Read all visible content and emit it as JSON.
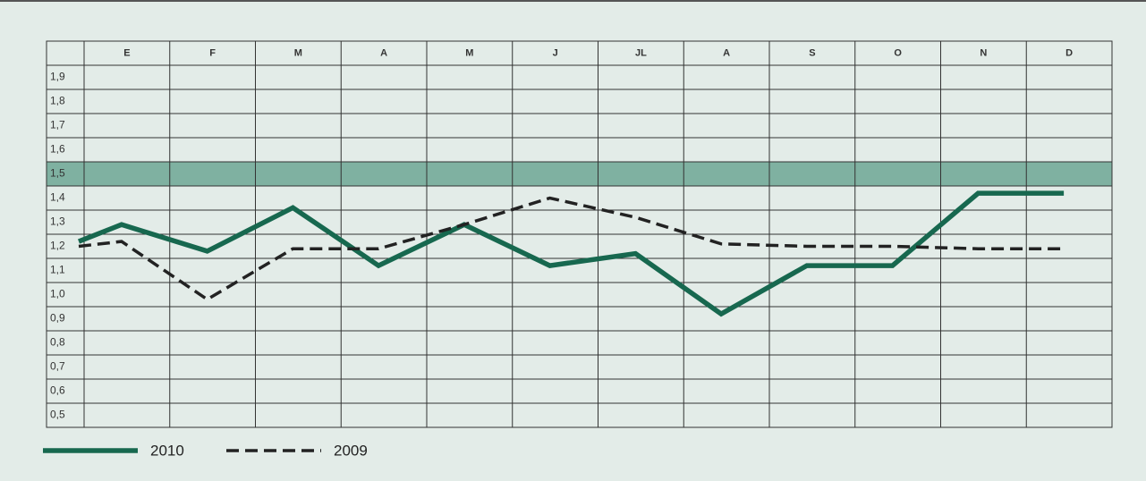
{
  "chart_data": {
    "type": "line",
    "categories": [
      null,
      "E",
      "F",
      "M",
      "A",
      "M",
      "J",
      "JL",
      "A",
      "S",
      "O",
      "N",
      "D"
    ],
    "series": [
      {
        "name": "2010",
        "color": "#17684f",
        "dash": false,
        "values": [
          1.22,
          1.29,
          1.18,
          1.36,
          1.12,
          1.29,
          1.12,
          1.17,
          0.92,
          1.12,
          1.12,
          1.42,
          1.42
        ]
      },
      {
        "name": "2009",
        "color": "#222222",
        "dash": true,
        "values": [
          1.2,
          1.22,
          0.98,
          1.19,
          1.19,
          1.29,
          1.4,
          1.32,
          1.21,
          1.2,
          1.2,
          1.19,
          1.19
        ]
      }
    ],
    "ylim": [
      0.45,
      1.95
    ],
    "yticks": [
      {
        "value": 1.9,
        "label": "1,9"
      },
      {
        "value": 1.8,
        "label": "1,8"
      },
      {
        "value": 1.7,
        "label": "1,7"
      },
      {
        "value": 1.6,
        "label": "1,6"
      },
      {
        "value": 1.5,
        "label": "1,5"
      },
      {
        "value": 1.4,
        "label": "1,4"
      },
      {
        "value": 1.3,
        "label": "1,3"
      },
      {
        "value": 1.2,
        "label": "1,2"
      },
      {
        "value": 1.1,
        "label": "1,1"
      },
      {
        "value": 1.0,
        "label": "1,0"
      },
      {
        "value": 0.9,
        "label": "0,9"
      },
      {
        "value": 0.8,
        "label": "0,8"
      },
      {
        "value": 0.7,
        "label": "0,7"
      },
      {
        "value": 0.6,
        "label": "0,6"
      },
      {
        "value": 0.5,
        "label": "0,5"
      }
    ],
    "highlight": 1.5,
    "highlight_color": "#7fb1a1",
    "grid": true
  }
}
